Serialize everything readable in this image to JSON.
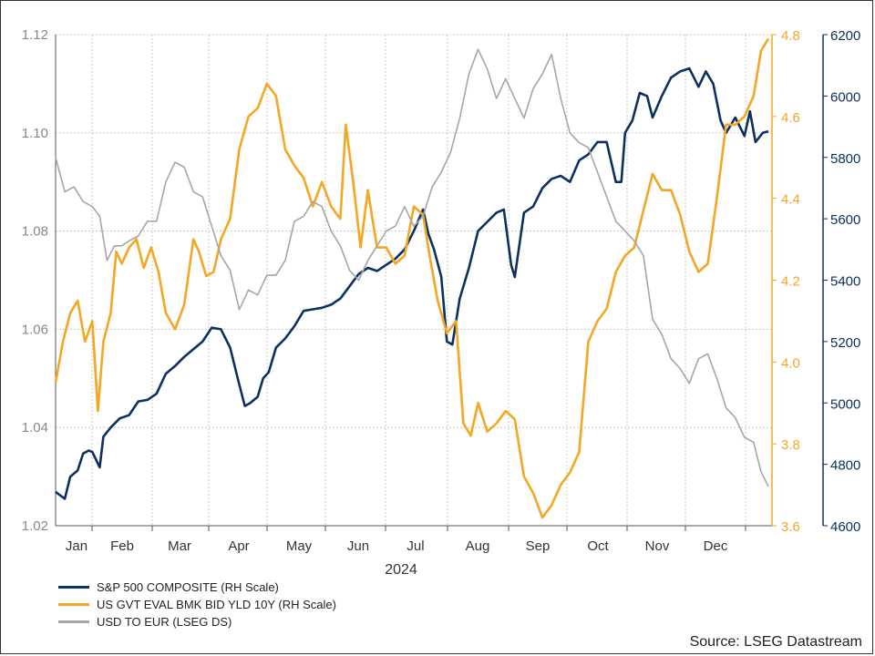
{
  "chart_data": {
    "type": "line",
    "x_label_year": "2024",
    "months": [
      "Jan",
      "Feb",
      "Mar",
      "Apr",
      "May",
      "Jun",
      "Jul",
      "Aug",
      "Sep",
      "Oct",
      "Nov",
      "Dec"
    ],
    "axes": {
      "left": {
        "ylim": [
          1.02,
          1.12
        ],
        "ticks": [
          "1.02",
          "1.04",
          "1.06",
          "1.08",
          "1.10",
          "1.12"
        ],
        "color": "#8a8a8a"
      },
      "right_inner": {
        "ylim": [
          3.6,
          4.8
        ],
        "ticks": [
          "3.6",
          "3.8",
          "4.0",
          "4.2",
          "4.4",
          "4.6",
          "4.8"
        ],
        "color": "#f5a623"
      },
      "right_outer": {
        "ylim": [
          4600,
          6200
        ],
        "ticks": [
          "4600",
          "4800",
          "5000",
          "5200",
          "5400",
          "5600",
          "5800",
          "6000",
          "6200"
        ],
        "color": "#0c3060"
      }
    },
    "grid": true,
    "series": [
      {
        "name": "S&P 500 COMPOSITE (RH Scale)",
        "axis": "right_outer",
        "color": "#0c3060",
        "points": [
          [
            0.0,
            4710
          ],
          [
            0.5,
            4688
          ],
          [
            0.8,
            4760
          ],
          [
            1.2,
            4780
          ],
          [
            1.5,
            4835
          ],
          [
            1.8,
            4845
          ],
          [
            2.0,
            4840
          ],
          [
            2.4,
            4790
          ],
          [
            2.6,
            4890
          ],
          [
            3.0,
            4920
          ],
          [
            3.5,
            4950
          ],
          [
            4.0,
            4960
          ],
          [
            4.5,
            5005
          ],
          [
            5.0,
            5010
          ],
          [
            5.5,
            5030
          ],
          [
            6.0,
            5095
          ],
          [
            6.5,
            5120
          ],
          [
            7.0,
            5150
          ],
          [
            7.5,
            5175
          ],
          [
            8.0,
            5200
          ],
          [
            8.5,
            5245
          ],
          [
            9.0,
            5240
          ],
          [
            9.5,
            5180
          ],
          [
            10.0,
            5060
          ],
          [
            10.3,
            4990
          ],
          [
            10.6,
            5000
          ],
          [
            11.0,
            5020
          ],
          [
            11.3,
            5080
          ],
          [
            11.6,
            5100
          ],
          [
            12.0,
            5180
          ],
          [
            12.5,
            5210
          ],
          [
            13.0,
            5250
          ],
          [
            13.5,
            5300
          ],
          [
            14.0,
            5305
          ],
          [
            14.5,
            5310
          ],
          [
            15.0,
            5320
          ],
          [
            15.5,
            5340
          ],
          [
            16.0,
            5380
          ],
          [
            16.5,
            5420
          ],
          [
            17.0,
            5440
          ],
          [
            17.5,
            5430
          ],
          [
            18.0,
            5450
          ],
          [
            18.5,
            5470
          ],
          [
            19.0,
            5500
          ],
          [
            19.5,
            5560
          ],
          [
            20.0,
            5630
          ],
          [
            20.3,
            5550
          ],
          [
            20.6,
            5500
          ],
          [
            21.0,
            5410
          ],
          [
            21.3,
            5200
          ],
          [
            21.6,
            5190
          ],
          [
            22.0,
            5340
          ],
          [
            22.5,
            5440
          ],
          [
            23.0,
            5560
          ],
          [
            23.5,
            5590
          ],
          [
            24.0,
            5620
          ],
          [
            24.4,
            5630
          ],
          [
            24.8,
            5450
          ],
          [
            25.0,
            5410
          ],
          [
            25.5,
            5620
          ],
          [
            26.0,
            5640
          ],
          [
            26.5,
            5700
          ],
          [
            27.0,
            5730
          ],
          [
            27.5,
            5740
          ],
          [
            28.0,
            5720
          ],
          [
            28.5,
            5790
          ],
          [
            29.0,
            5810
          ],
          [
            29.5,
            5850
          ],
          [
            30.0,
            5850
          ],
          [
            30.5,
            5720
          ],
          [
            30.8,
            5720
          ],
          [
            31.0,
            5880
          ],
          [
            31.4,
            5920
          ],
          [
            31.8,
            6010
          ],
          [
            32.2,
            6000
          ],
          [
            32.5,
            5930
          ],
          [
            33.0,
            6000
          ],
          [
            33.5,
            6060
          ],
          [
            34.0,
            6080
          ],
          [
            34.5,
            6090
          ],
          [
            35.0,
            6030
          ],
          [
            35.4,
            6080
          ],
          [
            35.8,
            6040
          ],
          [
            36.2,
            5920
          ],
          [
            36.5,
            5880
          ],
          [
            37.0,
            5930
          ],
          [
            37.5,
            5870
          ],
          [
            37.8,
            5950
          ],
          [
            38.1,
            5850
          ],
          [
            38.5,
            5880
          ],
          [
            38.8,
            5885
          ]
        ]
      },
      {
        "name": "US GVT EVAL BMK BID YLD 10Y (RH Scale)",
        "axis": "right_inner",
        "color": "#f5a623",
        "points": [
          [
            0.0,
            3.95
          ],
          [
            0.4,
            4.05
          ],
          [
            0.8,
            4.12
          ],
          [
            1.2,
            4.15
          ],
          [
            1.6,
            4.05
          ],
          [
            2.0,
            4.1
          ],
          [
            2.3,
            3.88
          ],
          [
            2.6,
            4.05
          ],
          [
            3.0,
            4.12
          ],
          [
            3.3,
            4.27
          ],
          [
            3.6,
            4.24
          ],
          [
            4.0,
            4.28
          ],
          [
            4.4,
            4.3
          ],
          [
            4.8,
            4.23
          ],
          [
            5.2,
            4.28
          ],
          [
            5.6,
            4.22
          ],
          [
            6.0,
            4.12
          ],
          [
            6.5,
            4.08
          ],
          [
            7.0,
            4.14
          ],
          [
            7.5,
            4.3
          ],
          [
            7.8,
            4.27
          ],
          [
            8.2,
            4.21
          ],
          [
            8.6,
            4.22
          ],
          [
            9.0,
            4.3
          ],
          [
            9.5,
            4.35
          ],
          [
            10.0,
            4.52
          ],
          [
            10.5,
            4.6
          ],
          [
            11.0,
            4.62
          ],
          [
            11.5,
            4.68
          ],
          [
            12.0,
            4.65
          ],
          [
            12.5,
            4.52
          ],
          [
            13.0,
            4.48
          ],
          [
            13.5,
            4.45
          ],
          [
            14.0,
            4.38
          ],
          [
            14.5,
            4.44
          ],
          [
            15.0,
            4.38
          ],
          [
            15.5,
            4.35
          ],
          [
            15.8,
            4.58
          ],
          [
            16.2,
            4.44
          ],
          [
            16.6,
            4.28
          ],
          [
            17.0,
            4.42
          ],
          [
            17.5,
            4.28
          ],
          [
            18.0,
            4.28
          ],
          [
            18.5,
            4.24
          ],
          [
            19.0,
            4.26
          ],
          [
            19.5,
            4.38
          ],
          [
            20.0,
            4.36
          ],
          [
            20.4,
            4.25
          ],
          [
            20.8,
            4.15
          ],
          [
            21.3,
            4.07
          ],
          [
            21.8,
            4.1
          ],
          [
            22.2,
            3.85
          ],
          [
            22.6,
            3.82
          ],
          [
            23.0,
            3.9
          ],
          [
            23.5,
            3.83
          ],
          [
            24.0,
            3.85
          ],
          [
            24.5,
            3.88
          ],
          [
            25.0,
            3.86
          ],
          [
            25.5,
            3.72
          ],
          [
            26.0,
            3.68
          ],
          [
            26.5,
            3.62
          ],
          [
            27.0,
            3.65
          ],
          [
            27.5,
            3.7
          ],
          [
            28.0,
            3.73
          ],
          [
            28.5,
            3.78
          ],
          [
            29.0,
            4.05
          ],
          [
            29.5,
            4.1
          ],
          [
            30.0,
            4.13
          ],
          [
            30.5,
            4.22
          ],
          [
            31.0,
            4.26
          ],
          [
            31.5,
            4.28
          ],
          [
            32.0,
            4.37
          ],
          [
            32.5,
            4.46
          ],
          [
            33.0,
            4.42
          ],
          [
            33.5,
            4.42
          ],
          [
            34.0,
            4.36
          ],
          [
            34.5,
            4.27
          ],
          [
            35.0,
            4.22
          ],
          [
            35.5,
            4.24
          ],
          [
            36.0,
            4.4
          ],
          [
            36.5,
            4.58
          ],
          [
            37.0,
            4.58
          ],
          [
            37.5,
            4.6
          ],
          [
            38.0,
            4.65
          ],
          [
            38.4,
            4.76
          ],
          [
            38.8,
            4.79
          ]
        ]
      },
      {
        "name": "USD TO EUR (LSEG DS)",
        "axis": "left",
        "color": "#a6a6a6",
        "points": [
          [
            0.0,
            1.095
          ],
          [
            0.5,
            1.088
          ],
          [
            1.0,
            1.089
          ],
          [
            1.5,
            1.086
          ],
          [
            2.0,
            1.085
          ],
          [
            2.4,
            1.083
          ],
          [
            2.8,
            1.074
          ],
          [
            3.2,
            1.077
          ],
          [
            3.6,
            1.077
          ],
          [
            4.0,
            1.078
          ],
          [
            4.5,
            1.079
          ],
          [
            5.0,
            1.082
          ],
          [
            5.5,
            1.082
          ],
          [
            6.0,
            1.09
          ],
          [
            6.5,
            1.094
          ],
          [
            7.0,
            1.093
          ],
          [
            7.5,
            1.088
          ],
          [
            8.0,
            1.087
          ],
          [
            8.5,
            1.081
          ],
          [
            9.0,
            1.075
          ],
          [
            9.5,
            1.072
          ],
          [
            10.0,
            1.064
          ],
          [
            10.5,
            1.068
          ],
          [
            11.0,
            1.067
          ],
          [
            11.5,
            1.071
          ],
          [
            12.0,
            1.071
          ],
          [
            12.5,
            1.074
          ],
          [
            13.0,
            1.082
          ],
          [
            13.5,
            1.083
          ],
          [
            14.0,
            1.086
          ],
          [
            14.5,
            1.085
          ],
          [
            15.0,
            1.08
          ],
          [
            15.5,
            1.077
          ],
          [
            16.0,
            1.072
          ],
          [
            16.5,
            1.07
          ],
          [
            17.0,
            1.074
          ],
          [
            17.5,
            1.077
          ],
          [
            18.0,
            1.08
          ],
          [
            18.5,
            1.081
          ],
          [
            19.0,
            1.085
          ],
          [
            19.5,
            1.081
          ],
          [
            20.0,
            1.083
          ],
          [
            20.5,
            1.089
          ],
          [
            21.0,
            1.092
          ],
          [
            21.5,
            1.096
          ],
          [
            22.0,
            1.103
          ],
          [
            22.5,
            1.112
          ],
          [
            23.0,
            1.117
          ],
          [
            23.5,
            1.113
          ],
          [
            24.0,
            1.107
          ],
          [
            24.5,
            1.111
          ],
          [
            25.0,
            1.107
          ],
          [
            25.5,
            1.103
          ],
          [
            26.0,
            1.109
          ],
          [
            26.5,
            1.112
          ],
          [
            27.0,
            1.116
          ],
          [
            27.5,
            1.107
          ],
          [
            28.0,
            1.1
          ],
          [
            28.5,
            1.098
          ],
          [
            29.0,
            1.097
          ],
          [
            29.5,
            1.092
          ],
          [
            30.0,
            1.087
          ],
          [
            30.5,
            1.082
          ],
          [
            31.0,
            1.08
          ],
          [
            31.5,
            1.078
          ],
          [
            32.0,
            1.075
          ],
          [
            32.5,
            1.062
          ],
          [
            33.0,
            1.059
          ],
          [
            33.5,
            1.054
          ],
          [
            34.0,
            1.052
          ],
          [
            34.5,
            1.049
          ],
          [
            35.0,
            1.054
          ],
          [
            35.5,
            1.055
          ],
          [
            36.0,
            1.05
          ],
          [
            36.5,
            1.044
          ],
          [
            37.0,
            1.042
          ],
          [
            37.5,
            1.038
          ],
          [
            38.0,
            1.037
          ],
          [
            38.4,
            1.031
          ],
          [
            38.8,
            1.028
          ]
        ]
      }
    ]
  },
  "legend": {
    "sp500": "S&P 500 COMPOSITE (RH Scale)",
    "us10y": "US GVT EVAL BMK BID YLD 10Y (RH Scale)",
    "usdeur": "USD TO EUR (LSEG DS)"
  },
  "source": "Source: LSEG Datastream"
}
